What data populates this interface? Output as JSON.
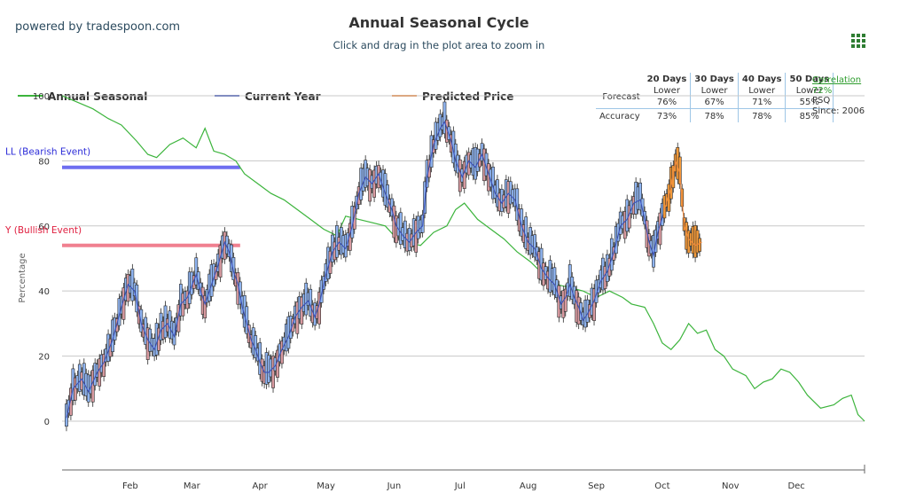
{
  "brand": "powered by tradespoon.com",
  "title": "Annual Seasonal Cycle",
  "subtitle": "Click and drag in the plot area to zoom in",
  "menu_icon": "grid-menu-icon",
  "legend": [
    {
      "label": "Annual Seasonal",
      "color": "#3cb43c"
    },
    {
      "label": "Current Year",
      "color": "#3a50b8"
    },
    {
      "label": "Predicted Price",
      "color": "#f0883c"
    }
  ],
  "stats": {
    "headers": [
      "20 Days",
      "30 Days",
      "40 Days",
      "50 Days"
    ],
    "forecast_label": "Forecast",
    "forecast_dir": [
      "Lower",
      "Lower",
      "Lower",
      "Lower"
    ],
    "forecast_pct": [
      "76%",
      "67%",
      "71%",
      "55%"
    ],
    "accuracy_label": "Accuracy",
    "accuracy": [
      "73%",
      "78%",
      "78%",
      "85%"
    ]
  },
  "correlation": {
    "label": "Correlation",
    "value": "72%",
    "symbol": "PSQ",
    "since": "Since: 2006"
  },
  "chart_data": {
    "type": "line",
    "ylabel": "Percentage",
    "ylim": [
      -15,
      100
    ],
    "yticks": [
      0,
      20,
      40,
      60,
      80,
      100
    ],
    "xlim": [
      1,
      366
    ],
    "xticks": [
      {
        "label": "Feb",
        "day": 32
      },
      {
        "label": "Mar",
        "day": 60
      },
      {
        "label": "Apr",
        "day": 91
      },
      {
        "label": "May",
        "day": 121
      },
      {
        "label": "Jun",
        "day": 152
      },
      {
        "label": "Jul",
        "day": 182
      },
      {
        "label": "Aug",
        "day": 213
      },
      {
        "label": "Sep",
        "day": 244
      },
      {
        "label": "Oct",
        "day": 274
      },
      {
        "label": "Nov",
        "day": 305
      },
      {
        "label": "Dec",
        "day": 335
      }
    ],
    "grid": true,
    "legend_position": "top-left",
    "events": [
      {
        "label": "LL (Bearish Event)",
        "value": 78,
        "x_end_day": 82,
        "color": "#6e6ef0",
        "text_color": "#2b2bd8"
      },
      {
        "label": "Y (Bullish Event)",
        "value": 54,
        "x_end_day": 82,
        "color": "#f08090",
        "text_color": "#e02040"
      }
    ],
    "series": [
      {
        "name": "Annual Seasonal",
        "color": "#3cb43c",
        "points": [
          [
            1,
            100
          ],
          [
            8,
            98
          ],
          [
            15,
            96
          ],
          [
            22,
            93
          ],
          [
            28,
            91
          ],
          [
            35,
            86
          ],
          [
            40,
            82
          ],
          [
            44,
            81
          ],
          [
            50,
            85
          ],
          [
            56,
            87
          ],
          [
            62,
            84
          ],
          [
            66,
            90
          ],
          [
            70,
            83
          ],
          [
            75,
            82
          ],
          [
            80,
            80
          ],
          [
            84,
            76
          ],
          [
            90,
            73
          ],
          [
            96,
            70
          ],
          [
            102,
            68
          ],
          [
            108,
            65
          ],
          [
            114,
            62
          ],
          [
            120,
            59
          ],
          [
            126,
            57
          ],
          [
            130,
            63
          ],
          [
            136,
            62
          ],
          [
            142,
            61
          ],
          [
            148,
            60
          ],
          [
            152,
            57
          ],
          [
            158,
            55
          ],
          [
            164,
            54
          ],
          [
            170,
            58
          ],
          [
            176,
            60
          ],
          [
            180,
            65
          ],
          [
            184,
            67
          ],
          [
            190,
            62
          ],
          [
            196,
            59
          ],
          [
            202,
            56
          ],
          [
            208,
            52
          ],
          [
            214,
            49
          ],
          [
            220,
            45
          ],
          [
            226,
            42
          ],
          [
            232,
            41
          ],
          [
            238,
            40
          ],
          [
            244,
            38
          ],
          [
            250,
            40
          ],
          [
            256,
            38
          ],
          [
            260,
            36
          ],
          [
            266,
            35
          ],
          [
            270,
            30
          ],
          [
            274,
            24
          ],
          [
            278,
            22
          ],
          [
            282,
            25
          ],
          [
            286,
            30
          ],
          [
            290,
            27
          ],
          [
            294,
            28
          ],
          [
            298,
            22
          ],
          [
            302,
            20
          ],
          [
            306,
            16
          ],
          [
            312,
            14
          ],
          [
            316,
            10
          ],
          [
            320,
            12
          ],
          [
            324,
            13
          ],
          [
            328,
            16
          ],
          [
            332,
            15
          ],
          [
            336,
            12
          ],
          [
            340,
            8
          ],
          [
            346,
            4
          ],
          [
            352,
            5
          ],
          [
            356,
            7
          ],
          [
            360,
            8
          ],
          [
            363,
            2
          ],
          [
            366,
            0
          ]
        ]
      },
      {
        "name": "Current Year",
        "color": "#3a50b8",
        "points": [
          [
            3,
            1
          ],
          [
            6,
            10
          ],
          [
            10,
            13
          ],
          [
            13,
            9
          ],
          [
            17,
            15
          ],
          [
            20,
            18
          ],
          [
            24,
            25
          ],
          [
            28,
            35
          ],
          [
            31,
            42
          ],
          [
            34,
            40
          ],
          [
            37,
            30
          ],
          [
            40,
            25
          ],
          [
            43,
            22
          ],
          [
            46,
            28
          ],
          [
            49,
            30
          ],
          [
            52,
            26
          ],
          [
            55,
            36
          ],
          [
            58,
            38
          ],
          [
            62,
            45
          ],
          [
            64,
            40
          ],
          [
            66,
            36
          ],
          [
            69,
            42
          ],
          [
            72,
            48
          ],
          [
            75,
            55
          ],
          [
            77,
            52
          ],
          [
            79,
            46
          ],
          [
            81,
            42
          ],
          [
            83,
            35
          ],
          [
            85,
            30
          ],
          [
            87,
            25
          ],
          [
            89,
            22
          ],
          [
            91,
            18
          ],
          [
            93,
            15
          ],
          [
            95,
            15
          ],
          [
            98,
            17
          ],
          [
            101,
            22
          ],
          [
            104,
            26
          ],
          [
            107,
            32
          ],
          [
            110,
            35
          ],
          [
            113,
            37
          ],
          [
            116,
            32
          ],
          [
            118,
            36
          ],
          [
            121,
            45
          ],
          [
            124,
            52
          ],
          [
            127,
            55
          ],
          [
            130,
            53
          ],
          [
            133,
            60
          ],
          [
            136,
            70
          ],
          [
            139,
            75
          ],
          [
            142,
            73
          ],
          [
            145,
            76
          ],
          [
            148,
            70
          ],
          [
            151,
            65
          ],
          [
            153,
            60
          ],
          [
            156,
            57
          ],
          [
            159,
            55
          ],
          [
            162,
            58
          ],
          [
            165,
            60
          ],
          [
            167,
            75
          ],
          [
            170,
            85
          ],
          [
            173,
            90
          ],
          [
            175,
            92
          ],
          [
            178,
            86
          ],
          [
            180,
            80
          ],
          [
            183,
            75
          ],
          [
            186,
            80
          ],
          [
            189,
            78
          ],
          [
            192,
            82
          ],
          [
            195,
            76
          ],
          [
            198,
            70
          ],
          [
            201,
            67
          ],
          [
            204,
            70
          ],
          [
            207,
            68
          ],
          [
            210,
            60
          ],
          [
            213,
            55
          ],
          [
            216,
            53
          ],
          [
            219,
            47
          ],
          [
            222,
            44
          ],
          [
            225,
            42
          ],
          [
            228,
            36
          ],
          [
            230,
            38
          ],
          [
            232,
            42
          ],
          [
            234,
            38
          ],
          [
            236,
            35
          ],
          [
            238,
            31
          ],
          [
            240,
            33
          ],
          [
            243,
            37
          ],
          [
            246,
            43
          ],
          [
            249,
            46
          ],
          [
            252,
            52
          ],
          [
            255,
            60
          ],
          [
            258,
            62
          ],
          [
            261,
            67
          ],
          [
            264,
            68
          ],
          [
            266,
            62
          ],
          [
            268,
            55
          ],
          [
            270,
            51
          ],
          [
            272,
            58
          ],
          [
            275,
            65
          ]
        ]
      },
      {
        "name": "Predicted Price",
        "color": "#f0883c",
        "points": [
          [
            275,
            65
          ],
          [
            278,
            72
          ],
          [
            280,
            80
          ],
          [
            282,
            76
          ],
          [
            284,
            60
          ],
          [
            286,
            56
          ],
          [
            289,
            54
          ],
          [
            292,
            55
          ]
        ]
      }
    ]
  }
}
